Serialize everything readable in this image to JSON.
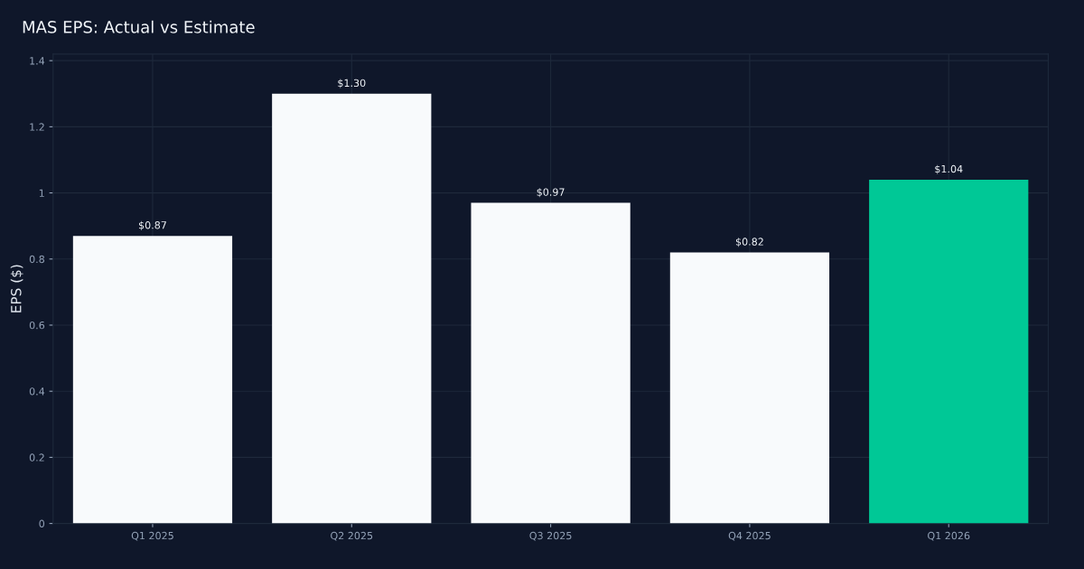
{
  "chart_data": {
    "type": "bar",
    "title": "MAS EPS: Actual vs Estimate",
    "ylabel": "EPS ($)",
    "categories": [
      "Q1 2025",
      "Q2 2025",
      "Q3 2025",
      "Q4 2025",
      "Q1 2026"
    ],
    "values": [
      0.87,
      1.3,
      0.97,
      0.82,
      1.04
    ],
    "colors": [
      "#f8fafc",
      "#f8fafc",
      "#f8fafc",
      "#f8fafc",
      "#00c896"
    ],
    "value_labels": [
      "$0.87",
      "$1.30",
      "$0.97",
      "$0.82",
      "$1.04"
    ],
    "ylim": [
      0,
      1.42
    ],
    "yticks": [
      0,
      0.2,
      0.4,
      0.6,
      0.8,
      {
        "value": 1,
        "label": "1"
      },
      1.2,
      1.4
    ],
    "grid": true
  }
}
